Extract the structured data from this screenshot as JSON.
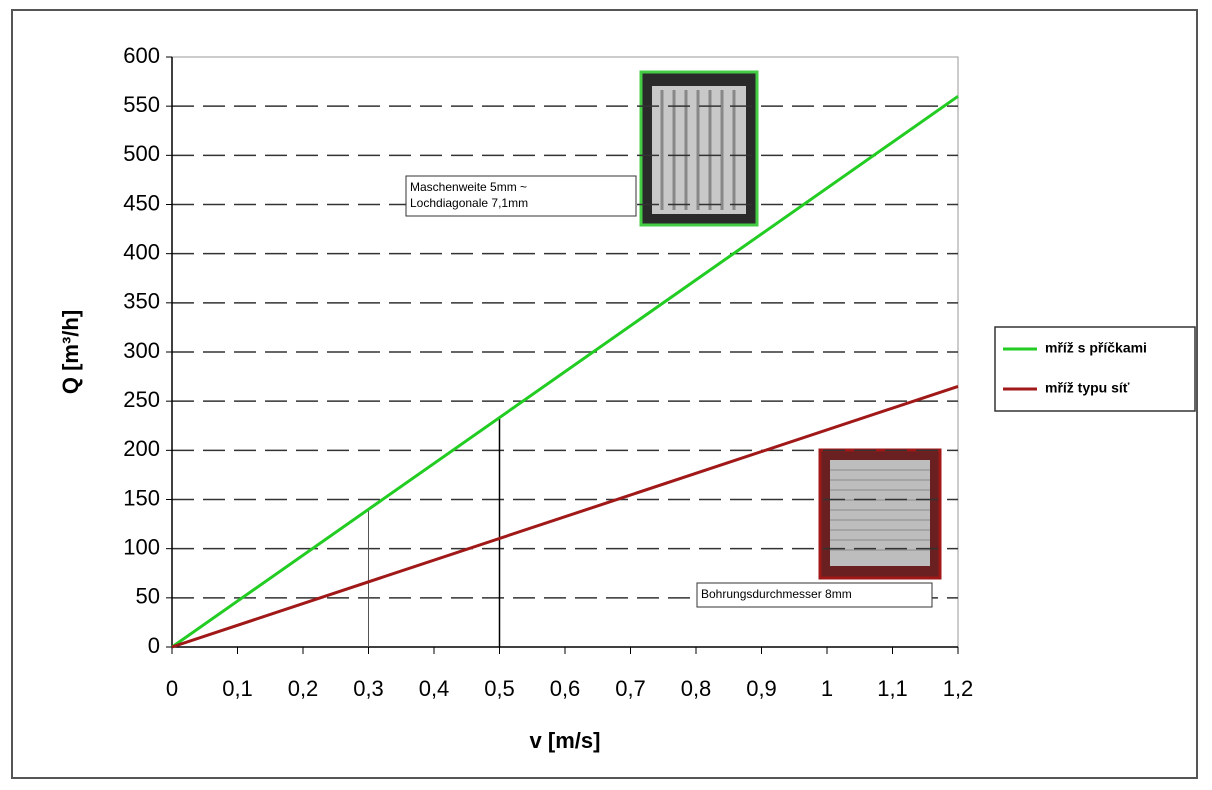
{
  "chart_data": {
    "type": "line",
    "x_label": "v [m/s]",
    "y_label": "Q [m³/h]",
    "x": [
      0,
      1.2
    ],
    "series": [
      {
        "name": "mříž s příčkami",
        "color": "#22cc22",
        "values": [
          0,
          560
        ]
      },
      {
        "name": "mříž typu síť",
        "color": "#a01818",
        "values": [
          0,
          265
        ]
      }
    ],
    "xlim": [
      0,
      1.2
    ],
    "xticks": [
      0,
      {
        "value": 0.1,
        "label": "0,1"
      },
      {
        "value": 0.2,
        "label": "0,2"
      },
      {
        "value": 0.3,
        "label": "0,3"
      },
      {
        "value": 0.4,
        "label": "0,4"
      },
      {
        "value": 0.5,
        "label": "0,5"
      },
      {
        "value": 0.6,
        "label": "0,6"
      },
      {
        "value": 0.7,
        "label": "0,7"
      },
      {
        "value": 0.8,
        "label": "0,8"
      },
      {
        "value": 0.9,
        "label": "0,9"
      },
      1,
      {
        "value": 1.1,
        "label": "1,1"
      },
      {
        "value": 1.2,
        "label": "1,2"
      }
    ],
    "ylim": [
      0,
      600
    ],
    "yticks": [
      0,
      50,
      100,
      150,
      200,
      250,
      300,
      350,
      400,
      450,
      500,
      550,
      600
    ],
    "grid": true,
    "legend": "right",
    "reference_lines": [
      {
        "x": 0.3,
        "y": 140
      },
      {
        "x": 0.5,
        "y": 233
      }
    ],
    "annotations": [
      {
        "lines": [
          "Maschenweite 5mm ~",
          "Lochdiagonale 7,1mm"
        ]
      },
      {
        "lines": [
          "Bohrungsdurchmesser 8mm"
        ]
      }
    ]
  }
}
